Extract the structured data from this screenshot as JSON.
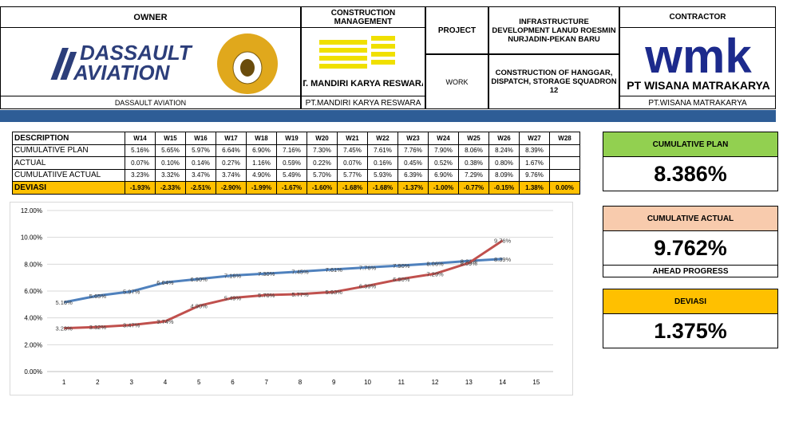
{
  "header": {
    "owner_label": "OWNER",
    "owner_logo_line1": "DASSAULT",
    "owner_logo_line2": "AVIATION",
    "owner_name": "DASSAULT AVIATION",
    "cm_label": "CONSTRUCTION MANAGEMENT",
    "cm_logo": "PT. MANDIRI KARYA RESWARA",
    "cm_name": "PT.MANDIRI KARYA RESWARA",
    "project_label": "PROJECT",
    "project": "INFRASTRUCTURE DEVELOPMENT LANUD ROESMIN NURJADIN-PEKAN BARU",
    "work_label": "WORK",
    "work": "CONSTRUCTION OF HANGGAR, DISPATCH, STORAGE SQUADRON 12",
    "contractor_label": "CONTRACTOR",
    "contractor_logo": "wmk",
    "contractor_logo_name": "PT WISANA MATRAKARYA",
    "contractor_name": "PT.WISANA MATRAKARYA"
  },
  "table": {
    "headers": [
      "DESCRIPTION",
      "W14",
      "W15",
      "W16",
      "W17",
      "W18",
      "W19",
      "W20",
      "W21",
      "W22",
      "W23",
      "W24",
      "W25",
      "W26",
      "W27",
      "W28"
    ],
    "rows": [
      [
        "CUMULATIVE PLAN",
        "5.16%",
        "5.65%",
        "5.97%",
        "6.64%",
        "6.90%",
        "7.16%",
        "7.30%",
        "7.45%",
        "7.61%",
        "7.76%",
        "7.90%",
        "8.06%",
        "8.24%",
        "8.39%",
        null
      ],
      [
        "ACTUAL",
        "0.07%",
        "0.10%",
        "0.14%",
        "0.27%",
        "1.16%",
        "0.59%",
        "0.22%",
        "0.07%",
        "0.16%",
        "0.45%",
        "0.52%",
        "0.38%",
        "0.80%",
        "1.67%",
        null
      ],
      [
        "CUMULATIIVE ACTUAL",
        "3.23%",
        "3.32%",
        "3.47%",
        "3.74%",
        "4.90%",
        "5.49%",
        "5.70%",
        "5.77%",
        "5.93%",
        "6.39%",
        "6.90%",
        "7.29%",
        "8.09%",
        "9.76%",
        null
      ],
      [
        "DEVIASI",
        "-1.93%",
        "-2.33%",
        "-2.51%",
        "-2.90%",
        "-1.99%",
        "-1.67%",
        "-1.60%",
        "-1.68%",
        "-1.68%",
        "-1.37%",
        "-1.00%",
        "-0.77%",
        "-0.15%",
        "1.38%",
        "0.00%"
      ]
    ]
  },
  "kpis": [
    {
      "label": "CUMULATIVE PLAN",
      "value": "8.386%",
      "color": "#92d050"
    },
    {
      "label": "CUMULATIVE ACTUAL",
      "value": "9.762%",
      "note": "AHEAD PROGRESS",
      "color": "#f8cbad"
    },
    {
      "label": "DEVIASI",
      "value": "1.375%",
      "color": "#ffc000"
    }
  ],
  "chart_data": {
    "type": "line",
    "categories": [
      1,
      2,
      3,
      4,
      5,
      6,
      7,
      8,
      9,
      10,
      11,
      12,
      13,
      14,
      15
    ],
    "ylim": [
      0,
      12
    ],
    "yticks": [
      {
        "value": 0,
        "label": "0.00%"
      },
      {
        "value": 2,
        "label": "2.00%"
      },
      {
        "value": 4,
        "label": "4.00%"
      },
      {
        "value": 6,
        "label": "6.00%"
      },
      {
        "value": 8,
        "label": "8.00%"
      },
      {
        "value": 10,
        "label": "10.00%"
      },
      {
        "value": 12,
        "label": "12.00%"
      }
    ],
    "grid": true,
    "series": [
      {
        "color": "#4f81bd",
        "values": [
          5.16,
          5.65,
          5.97,
          6.64,
          6.9,
          7.16,
          7.3,
          7.45,
          7.61,
          7.76,
          7.9,
          8.06,
          8.24,
          8.39,
          null
        ],
        "value_labels": [
          "5.16%",
          "5.65%",
          "5.97%",
          "6.64%",
          "6.90%",
          "7.16%",
          "7.30%",
          "7.45%",
          "7.61%",
          "7.76%",
          "7.90%",
          "8.06%",
          "8.24%",
          "8.39%",
          null
        ]
      },
      {
        "color": "#c0504d",
        "values": [
          3.23,
          3.32,
          3.47,
          3.74,
          4.9,
          5.49,
          5.7,
          5.77,
          5.93,
          6.39,
          6.9,
          7.29,
          8.09,
          9.76,
          null
        ],
        "value_labels": [
          "3.23%",
          "3.32%",
          "3.47%",
          "3.74%",
          "4.90%",
          "5.49%",
          "5.70%",
          "5.77%",
          "5.93%",
          "6.39%",
          "6.90%",
          "7.29%",
          "8.09%",
          "9.76%",
          null
        ]
      }
    ]
  }
}
